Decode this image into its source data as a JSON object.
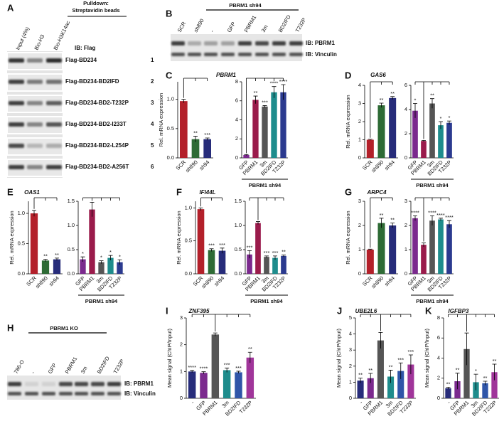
{
  "blot_a": {
    "panel": "A",
    "header": [
      "Pulldown:",
      "Streptavidin beads"
    ],
    "lanes": [
      "Input (4%)",
      "Bio-H3",
      "Bio-H3K14ac"
    ],
    "ib": "IB: Flag",
    "rows": [
      [
        "Flag-BD234",
        "1"
      ],
      [
        "Flag-BD234-BD2IFD",
        "2"
      ],
      [
        "Flag-BD234-BD2-T232P",
        "3"
      ],
      [
        "Flag-BD234-BD2-I233T",
        "4"
      ],
      [
        "Flag-BD234-BD2-L254P",
        "5"
      ],
      [
        "Flag-BD234-BD2-A256T",
        "6"
      ]
    ]
  },
  "blot_b": {
    "panel": "B",
    "header": "PBRM1 sh94",
    "lanes": [
      "SCR",
      "sh890",
      "-",
      "GFP",
      "PBRM1",
      "3m",
      "BD2IFD",
      "T232P"
    ],
    "ib": [
      "IB: PBRM1",
      "IB: Vinculin"
    ]
  },
  "blot_h": {
    "panel": "H",
    "header": "PBRM1 KO",
    "lanes": [
      "786-O",
      "-",
      "GFP",
      "PBRM1",
      "3m",
      "BD2IFD",
      "T232P"
    ],
    "ib": [
      "IB: PBRM1",
      "IB: Vinculin"
    ]
  },
  "chart_data": [
    {
      "type": "bar",
      "panel": "C",
      "title": "PBRM1",
      "ylabel": "Rel. mRNA expression",
      "categories": [
        "SCR",
        "sh890",
        "sh94"
      ],
      "values": [
        0.97,
        0.32,
        0.32
      ],
      "errors": [
        0.03,
        0.05,
        0.02
      ],
      "colors": [
        "#b3202a",
        "#2e6b35",
        "#272c7a"
      ],
      "ylim": [
        0,
        1.3
      ],
      "yticks": [
        {
          "value": 0,
          "label": "0.0"
        },
        0.5,
        {
          "value": 1,
          "label": "1.0"
        }
      ],
      "stars": [
        null,
        "**",
        "***"
      ]
    },
    {
      "type": "bar",
      "categories": [
        "GFP",
        "PBRM1",
        "3m",
        "BD2IFD",
        "T232P"
      ],
      "values": [
        0.3,
        6.1,
        5.4,
        6.9,
        6.9
      ],
      "errors": [
        0.05,
        0.4,
        0.1,
        0.6,
        0.8
      ],
      "colors": [
        "#7b2a8e",
        "#9a1b4b",
        "#555555",
        "#1e8c8c",
        "#2b3a8f"
      ],
      "ylim": [
        0,
        8
      ],
      "yticks": [
        0,
        2,
        4,
        6,
        8
      ],
      "stars": [
        null,
        "**",
        "***",
        "****",
        "****"
      ],
      "group_label": "PBRM1 sh94"
    },
    {
      "type": "bar",
      "panel": "D",
      "title": "GAS6",
      "ylabel": "Rel. mRNA expression",
      "categories": [
        "SCR",
        "sh890",
        "sh94"
      ],
      "values": [
        1.0,
        2.9,
        3.3
      ],
      "errors": [
        0.03,
        0.12,
        0.08
      ],
      "colors": [
        "#b3202a",
        "#2e6b35",
        "#272c7a"
      ],
      "ylim": [
        0,
        4
      ],
      "yticks": [
        0,
        1,
        2,
        3,
        4
      ],
      "stars": [
        null,
        "**",
        "**"
      ]
    },
    {
      "type": "bar",
      "categories": [
        "GFP",
        "PBRM1",
        "3m",
        "BD2IFD",
        "T232P"
      ],
      "values": [
        3.9,
        1.4,
        4.5,
        2.7,
        2.9
      ],
      "errors": [
        0.6,
        0.05,
        0.4,
        0.3,
        0.15
      ],
      "colors": [
        "#7b2a8e",
        "#9a1b4b",
        "#555555",
        "#1e8c8c",
        "#2b3a8f"
      ],
      "ylim": [
        0,
        6
      ],
      "yticks": [
        0,
        2,
        4,
        6
      ],
      "stars": [
        "*",
        null,
        "**",
        "*",
        "*"
      ],
      "group_label": "PBRM1 sh94"
    },
    {
      "type": "bar",
      "panel": "E",
      "title": "OAS1",
      "ylabel": "Rel. mRNA expression",
      "categories": [
        "SCR",
        "sh890",
        "sh94"
      ],
      "values": [
        1.0,
        0.22,
        0.24
      ],
      "errors": [
        0.05,
        0.02,
        0.02
      ],
      "colors": [
        "#b3202a",
        "#2e6b35",
        "#272c7a"
      ],
      "ylim": [
        0,
        1.2
      ],
      "yticks": [
        {
          "value": 0,
          "label": "0.0"
        },
        0.5,
        {
          "value": 1,
          "label": "1.0"
        }
      ],
      "stars": [
        null,
        "**",
        "**"
      ]
    },
    {
      "type": "bar",
      "categories": [
        "GFP",
        "PBRM1",
        "3m",
        "BD2IFD",
        "T232P"
      ],
      "values": [
        0.3,
        1.33,
        0.24,
        0.33,
        0.24
      ],
      "errors": [
        0.05,
        0.15,
        0.03,
        0.05,
        0.05
      ],
      "colors": [
        "#7b2a8e",
        "#9a1b4b",
        "#555555",
        "#1e8c8c",
        "#2b3a8f"
      ],
      "ylim": [
        0,
        1.5
      ],
      "yticks": [
        {
          "value": 0,
          "label": "0.0"
        },
        0.5,
        {
          "value": 1,
          "label": "1.0"
        },
        1.5
      ],
      "stars": [
        "*",
        null,
        "*",
        "*",
        "*"
      ],
      "group_label": "PBRM1 sh94"
    },
    {
      "type": "bar",
      "panel": "F",
      "title": "IFI44L",
      "ylabel": "Rel. mRNA expression",
      "categories": [
        "SCR",
        "sh890",
        "sh94"
      ],
      "values": [
        0.98,
        0.36,
        0.35
      ],
      "errors": [
        0.02,
        0.02,
        0.04
      ],
      "colors": [
        "#b3202a",
        "#2e6b35",
        "#272c7a"
      ],
      "ylim": [
        0,
        1.1
      ],
      "yticks": [
        {
          "value": 0,
          "label": "0.0"
        },
        0.5,
        {
          "value": 1,
          "label": "1.0"
        }
      ],
      "stars": [
        null,
        "***",
        "***"
      ]
    },
    {
      "type": "bar",
      "categories": [
        "GFP",
        "PBRM1",
        "3m",
        "BD2IFD",
        "T232P"
      ],
      "values": [
        0.4,
        1.05,
        0.35,
        0.33,
        0.37
      ],
      "errors": [
        0.08,
        0.03,
        0.02,
        0.04,
        0.02
      ],
      "colors": [
        "#7b2a8e",
        "#9a1b4b",
        "#555555",
        "#1e8c8c",
        "#2b3a8f"
      ],
      "ylim": [
        0,
        1.5
      ],
      "yticks": [
        {
          "value": 0,
          "label": "0.0"
        },
        0.5,
        {
          "value": 1,
          "label": "1.0"
        },
        1.5
      ],
      "stars": [
        "***",
        null,
        "***",
        "***",
        "**"
      ],
      "group_label": "PBRM1 sh94"
    },
    {
      "type": "bar",
      "panel": "G",
      "title": "ARPC4",
      "ylabel": "Rel. mRNA expression",
      "categories": [
        "SCR",
        "sh890",
        "sh94"
      ],
      "values": [
        1.0,
        2.1,
        2.0
      ],
      "errors": [
        0.02,
        0.2,
        0.1
      ],
      "colors": [
        "#b3202a",
        "#2e6b35",
        "#272c7a"
      ],
      "ylim": [
        0,
        3
      ],
      "yticks": [
        0,
        1,
        2,
        3
      ],
      "stars": [
        null,
        "**",
        "**"
      ]
    },
    {
      "type": "bar",
      "categories": [
        "GFP",
        "PBRM1",
        "3m",
        "BD2IFD",
        "T232P"
      ],
      "values": [
        2.3,
        1.2,
        2.2,
        2.25,
        2.05
      ],
      "errors": [
        0.1,
        0.08,
        0.2,
        0.05,
        0.15
      ],
      "colors": [
        "#7b2a8e",
        "#9a1b4b",
        "#555555",
        "#1e8c8c",
        "#2b3a8f"
      ],
      "ylim": [
        0,
        3
      ],
      "yticks": [
        0,
        1,
        2,
        3
      ],
      "stars": [
        "****",
        null,
        "****",
        "****",
        "****"
      ],
      "group_label": "PBRM1 sh94"
    },
    {
      "type": "bar",
      "panel": "I",
      "title": "ZNF395",
      "ylabel": "Mean signal (ChIP/Input)",
      "categories": [
        "-",
        "GFP",
        "PBRM1",
        "3m",
        "BD2IFD",
        "T232P"
      ],
      "values": [
        1.0,
        0.95,
        2.38,
        1.05,
        0.97,
        1.52
      ],
      "errors": [
        0.04,
        0.04,
        0.06,
        0.08,
        0.04,
        0.2
      ],
      "colors": [
        "#272c7a",
        "#7b2a8e",
        "#555555",
        "#1e8c8c",
        "#2f55a8",
        "#a0359a"
      ],
      "ylim": [
        0,
        3
      ],
      "yticks": [
        0,
        1,
        2,
        3
      ],
      "stars": [
        "****",
        "****",
        null,
        "***",
        "***",
        "**"
      ]
    },
    {
      "type": "bar",
      "panel": "J",
      "title": "UBE2L6",
      "ylabel": "Mean signal (ChIP/Input)",
      "categories": [
        "-",
        "GFP",
        "PBRM1",
        "3m",
        "BD2IFD",
        "T232P"
      ],
      "values": [
        1.1,
        1.25,
        3.6,
        1.35,
        1.7,
        2.1
      ],
      "errors": [
        0.15,
        0.3,
        0.5,
        0.4,
        0.5,
        0.6
      ],
      "colors": [
        "#272c7a",
        "#7b2a8e",
        "#555555",
        "#1e8c8c",
        "#2f55a8",
        "#a0359a"
      ],
      "ylim": [
        0,
        5
      ],
      "yticks": [
        0,
        1,
        2,
        3,
        4,
        5
      ],
      "stars": [
        "**",
        "**",
        null,
        "**",
        "***",
        "***"
      ]
    },
    {
      "type": "bar",
      "panel": "K",
      "title": "IGFBP3",
      "ylabel": "Mean signal (ChIP/Input)",
      "categories": [
        "-",
        "GFP",
        "PBRM1",
        "3m",
        "BD2IFD",
        "T232P"
      ],
      "values": [
        1.0,
        1.7,
        4.9,
        1.6,
        1.5,
        2.6
      ],
      "errors": [
        0.1,
        0.8,
        1.6,
        0.8,
        0.2,
        0.8
      ],
      "colors": [
        "#272c7a",
        "#7b2a8e",
        "#555555",
        "#1e8c8c",
        "#2f55a8",
        "#a0359a"
      ],
      "ylim": [
        0,
        8
      ],
      "yticks": [
        0,
        2,
        4,
        6,
        8
      ],
      "stars": [
        "**",
        "**",
        null,
        "*",
        "**",
        "**"
      ]
    }
  ]
}
